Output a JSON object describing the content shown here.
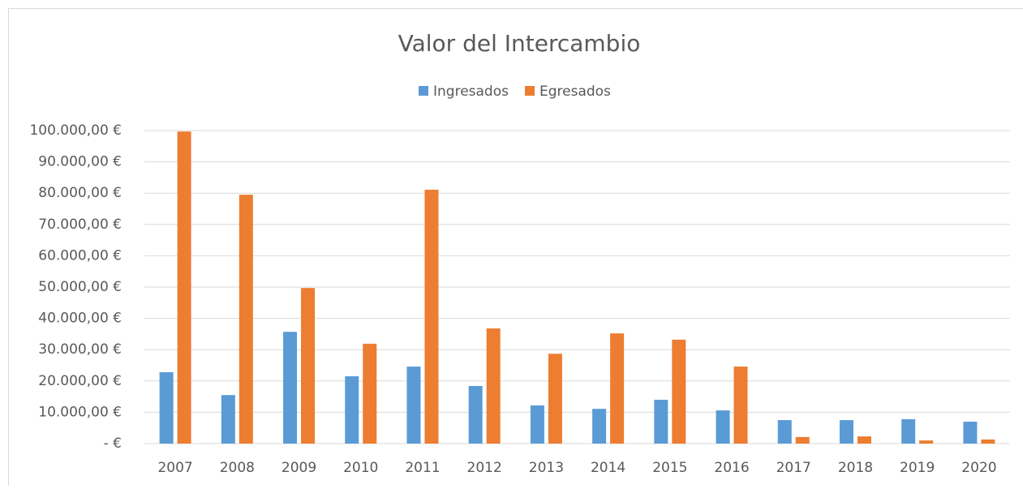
{
  "chart_data": {
    "type": "bar",
    "title": "Valor del Intercambio",
    "categories": [
      "2007",
      "2008",
      "2009",
      "2010",
      "2011",
      "2012",
      "2013",
      "2014",
      "2015",
      "2016",
      "2017",
      "2018",
      "2019",
      "2020"
    ],
    "series": [
      {
        "name": "Ingresados",
        "color": "#5b9bd5",
        "values": [
          22800,
          15500,
          35700,
          21500,
          24600,
          18400,
          12200,
          11100,
          14000,
          10600,
          7500,
          7500,
          7800,
          7000
        ]
      },
      {
        "name": "Egresados",
        "color": "#ed7d31",
        "values": [
          99700,
          79500,
          49700,
          31900,
          81100,
          36800,
          28700,
          35200,
          33200,
          24600,
          2100,
          2300,
          1000,
          1300
        ]
      }
    ],
    "ylim": [
      0,
      100000
    ],
    "yticks": [
      {
        "value": 0,
        "label": "-   €"
      },
      {
        "value": 10000,
        "label": "10.000,00 €"
      },
      {
        "value": 20000,
        "label": "20.000,00 €"
      },
      {
        "value": 30000,
        "label": "30.000,00 €"
      },
      {
        "value": 40000,
        "label": "40.000,00 €"
      },
      {
        "value": 50000,
        "label": "50.000,00 €"
      },
      {
        "value": 60000,
        "label": "60.000,00 €"
      },
      {
        "value": 70000,
        "label": "70.000,00 €"
      },
      {
        "value": 80000,
        "label": "80.000,00 €"
      },
      {
        "value": 90000,
        "label": "90.000,00 €"
      },
      {
        "value": 100000,
        "label": "100.000,00 €"
      }
    ],
    "grid": true,
    "legend": "top"
  }
}
